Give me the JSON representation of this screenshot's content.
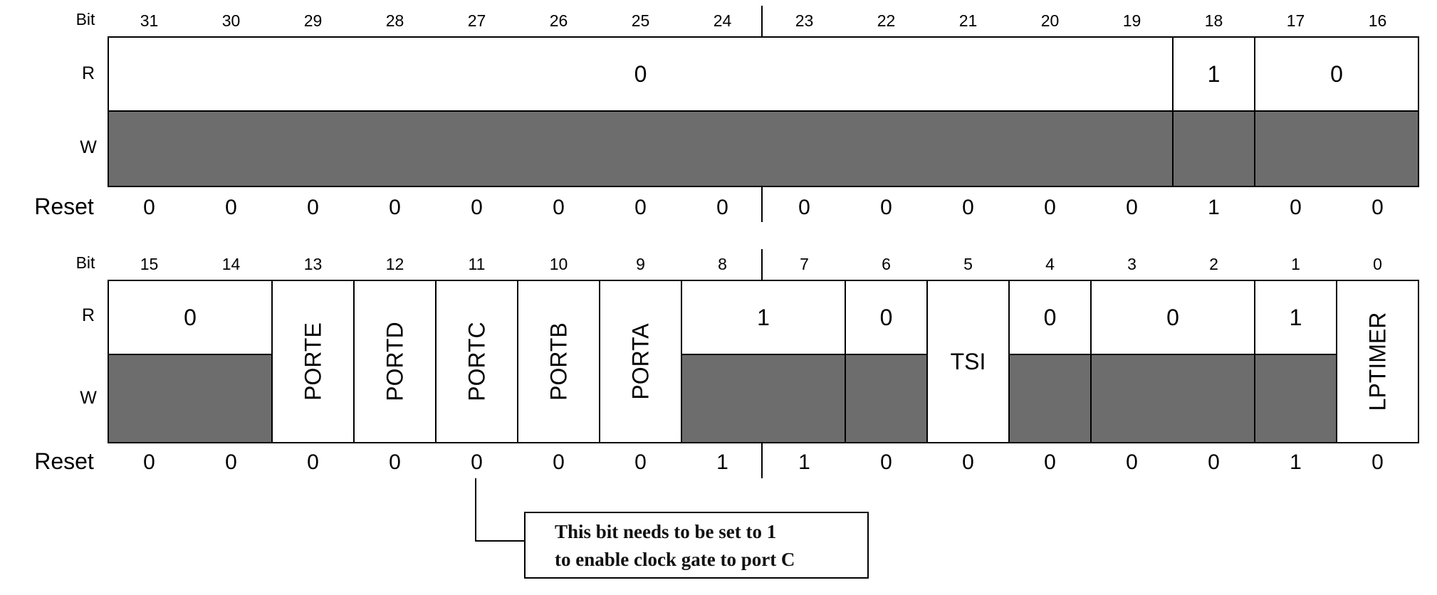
{
  "labels": {
    "bit": "Bit",
    "read": "R",
    "write": "W",
    "reset": "Reset"
  },
  "colors": {
    "write_only_fill": "#6d6d6d",
    "border": "#000000",
    "background": "#ffffff"
  },
  "registers": [
    {
      "bit_numbers": [
        "31",
        "30",
        "29",
        "28",
        "27",
        "26",
        "25",
        "24",
        "23",
        "22",
        "21",
        "20",
        "19",
        "18",
        "17",
        "16"
      ],
      "fields": [
        {
          "label": "0",
          "span": 13,
          "writable": false,
          "vertical": false
        },
        {
          "label": "1",
          "span": 1,
          "writable": false,
          "vertical": false
        },
        {
          "label": "0",
          "span": 2,
          "writable": false,
          "vertical": false
        }
      ],
      "reset": [
        "0",
        "0",
        "0",
        "0",
        "0",
        "0",
        "0",
        "0",
        "0",
        "0",
        "0",
        "0",
        "0",
        "1",
        "0",
        "0"
      ]
    },
    {
      "bit_numbers": [
        "15",
        "14",
        "13",
        "12",
        "11",
        "10",
        "9",
        "8",
        "7",
        "6",
        "5",
        "4",
        "3",
        "2",
        "1",
        "0"
      ],
      "fields": [
        {
          "label": "0",
          "span": 2,
          "writable": false,
          "vertical": false
        },
        {
          "label": "PORTE",
          "span": 1,
          "writable": true,
          "vertical": true
        },
        {
          "label": "PORTD",
          "span": 1,
          "writable": true,
          "vertical": true
        },
        {
          "label": "PORTC",
          "span": 1,
          "writable": true,
          "vertical": true
        },
        {
          "label": "PORTB",
          "span": 1,
          "writable": true,
          "vertical": true
        },
        {
          "label": "PORTA",
          "span": 1,
          "writable": true,
          "vertical": true
        },
        {
          "label": "1",
          "span": 2,
          "writable": false,
          "vertical": false
        },
        {
          "label": "0",
          "span": 1,
          "writable": false,
          "vertical": false
        },
        {
          "label": "TSI",
          "span": 1,
          "writable": true,
          "vertical": false
        },
        {
          "label": "0",
          "span": 1,
          "writable": false,
          "vertical": false
        },
        {
          "label": "0",
          "span": 2,
          "writable": false,
          "vertical": false
        },
        {
          "label": "1",
          "span": 1,
          "writable": false,
          "vertical": false
        },
        {
          "label": "LPTIMER",
          "span": 1,
          "writable": true,
          "vertical": true
        }
      ],
      "reset": [
        "0",
        "0",
        "0",
        "0",
        "0",
        "0",
        "0",
        "1",
        "1",
        "0",
        "0",
        "0",
        "0",
        "0",
        "1",
        "0"
      ]
    }
  ],
  "annotation": {
    "lines": [
      "This bit needs to be set to 1",
      "to enable clock gate to port C"
    ],
    "target_bit": "11"
  }
}
